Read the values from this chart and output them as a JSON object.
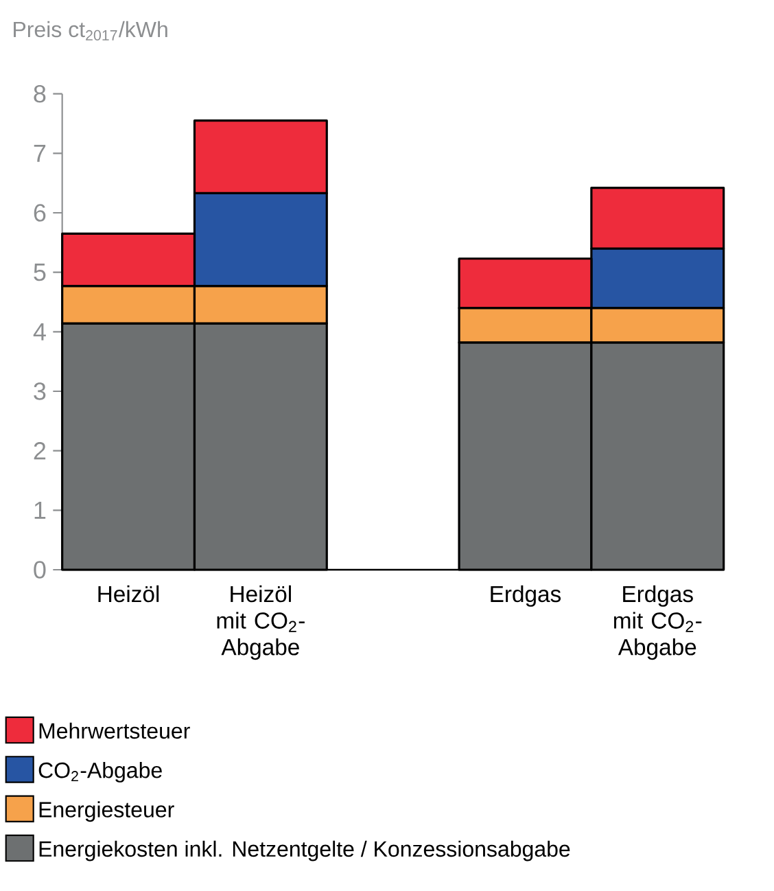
{
  "chart_data": {
    "type": "bar",
    "stacked": true,
    "ylabel": "Preis ct$_{2017}$/kWh",
    "categories": [
      "Heizöl",
      "Heizöl mit CO$_{2}$-Abgabe",
      null,
      "Erdgas",
      "Erdgas mit CO$_{2}$-Abgabe"
    ],
    "series": [
      {
        "name": "Energiekosten inkl. Netzentgelte / Konzessionsabgabe",
        "color": "#6d7071",
        "values": [
          4.14,
          4.14,
          null,
          3.82,
          3.82
        ]
      },
      {
        "name": "Energiesteuer",
        "color": "#f6a24b",
        "values": [
          0.63,
          0.63,
          null,
          0.58,
          0.58
        ]
      },
      {
        "name": "CO$_{2}$-Abgabe",
        "color": "#2755a3",
        "values": [
          null,
          1.56,
          null,
          null,
          1.0
        ]
      },
      {
        "name": "Mehrwertsteuer",
        "color": "#ee2c3c",
        "values": [
          0.88,
          1.22,
          null,
          0.83,
          1.02
        ]
      }
    ],
    "ylim": [
      0,
      8
    ],
    "yticks": [
      0,
      1,
      2,
      3,
      4,
      5,
      6,
      7,
      8
    ],
    "legend": "bottom"
  }
}
